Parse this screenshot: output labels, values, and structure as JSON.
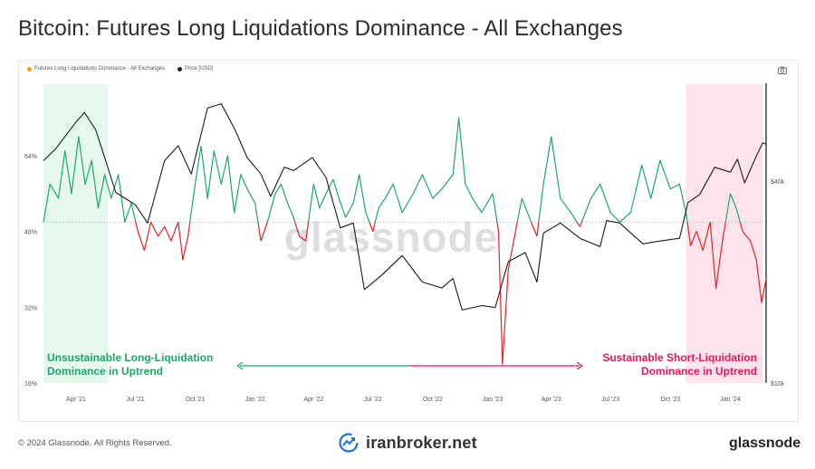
{
  "title": "Bitcoin: Futures Long Liquidations Dominance - All Exchanges",
  "legend": {
    "items": [
      {
        "label": "Futures Long Liquidations Dominance - All Exchanges",
        "color": "#f0a500"
      },
      {
        "label": "Price [USD]",
        "color": "#222222"
      }
    ]
  },
  "colors": {
    "above": "#1aa867",
    "below": "#e02424",
    "price": "#1a1a1a",
    "green_band": "#e6f7ee",
    "pink_band": "#fde4ec",
    "left_annotation": "#1aa867",
    "right_annotation": "#e8185c"
  },
  "watermark": "glassnode",
  "footer": {
    "copyright": "© 2024 Glassnode. All Rights Reserved.",
    "center_brand": "iranbroker.net",
    "right_brand": "glassnode"
  },
  "chart_data": {
    "type": "line",
    "x_ticks": [
      "Apr '21",
      "Jul '21",
      "Oct '21",
      "Jan '22",
      "Apr '22",
      "Jul '22",
      "Oct '22",
      "Jan '23",
      "Apr '23",
      "Jul '23",
      "Oct '23",
      "Jan '24"
    ],
    "x_range": [
      "2021-02-10",
      "2024-02-25"
    ],
    "y_left_ticks": [
      "64%",
      "48%",
      "32%",
      "16%"
    ],
    "y_left_range": [
      16,
      64
    ],
    "y_right_ticks": [
      "$40k",
      "$10k"
    ],
    "threshold": 50,
    "series": [
      {
        "name": "Futures Long Liquidations Dominance - All Exchanges",
        "axis": "left",
        "points": [
          [
            "2021-02-10",
            50
          ],
          [
            "2021-02-20",
            58
          ],
          [
            "2021-03-05",
            55
          ],
          [
            "2021-03-15",
            65
          ],
          [
            "2021-03-25",
            56
          ],
          [
            "2021-04-05",
            68
          ],
          [
            "2021-04-15",
            58
          ],
          [
            "2021-04-25",
            63
          ],
          [
            "2021-05-05",
            53
          ],
          [
            "2021-05-15",
            60
          ],
          [
            "2021-05-25",
            55
          ],
          [
            "2021-06-05",
            60
          ],
          [
            "2021-06-15",
            50
          ],
          [
            "2021-06-25",
            54
          ],
          [
            "2021-07-05",
            48
          ],
          [
            "2021-07-15",
            44
          ],
          [
            "2021-07-25",
            50
          ],
          [
            "2021-08-05",
            47
          ],
          [
            "2021-08-15",
            49
          ],
          [
            "2021-08-25",
            46
          ],
          [
            "2021-09-05",
            50
          ],
          [
            "2021-09-12",
            42
          ],
          [
            "2021-09-20",
            47
          ],
          [
            "2021-10-01",
            58
          ],
          [
            "2021-10-10",
            66
          ],
          [
            "2021-10-20",
            55
          ],
          [
            "2021-10-30",
            65
          ],
          [
            "2021-11-10",
            58
          ],
          [
            "2021-11-20",
            64
          ],
          [
            "2021-11-30",
            52
          ],
          [
            "2021-12-10",
            60
          ],
          [
            "2021-12-20",
            57
          ],
          [
            "2022-01-01",
            54
          ],
          [
            "2022-01-10",
            46
          ],
          [
            "2022-01-20",
            50
          ],
          [
            "2022-02-01",
            56
          ],
          [
            "2022-02-10",
            58
          ],
          [
            "2022-02-20",
            54
          ],
          [
            "2022-03-01",
            51
          ],
          [
            "2022-03-10",
            47
          ],
          [
            "2022-03-20",
            46
          ],
          [
            "2022-04-01",
            58
          ],
          [
            "2022-04-10",
            53
          ],
          [
            "2022-04-20",
            56
          ],
          [
            "2022-05-01",
            59
          ],
          [
            "2022-05-10",
            55
          ],
          [
            "2022-05-20",
            51
          ],
          [
            "2022-06-01",
            54
          ],
          [
            "2022-06-10",
            60
          ],
          [
            "2022-06-20",
            52
          ],
          [
            "2022-07-01",
            48
          ],
          [
            "2022-07-10",
            53
          ],
          [
            "2022-07-20",
            55
          ],
          [
            "2022-08-01",
            58
          ],
          [
            "2022-08-15",
            52
          ],
          [
            "2022-09-01",
            56
          ],
          [
            "2022-09-15",
            60
          ],
          [
            "2022-10-01",
            55
          ],
          [
            "2022-10-15",
            57
          ],
          [
            "2022-11-01",
            60
          ],
          [
            "2022-11-10",
            72
          ],
          [
            "2022-11-20",
            58
          ],
          [
            "2022-12-01",
            55
          ],
          [
            "2022-12-15",
            52
          ],
          [
            "2023-01-01",
            56
          ],
          [
            "2023-01-10",
            48
          ],
          [
            "2023-01-16",
            20
          ],
          [
            "2023-01-25",
            40
          ],
          [
            "2023-02-05",
            48
          ],
          [
            "2023-02-15",
            55
          ],
          [
            "2023-03-01",
            50
          ],
          [
            "2023-03-10",
            47
          ],
          [
            "2023-03-20",
            58
          ],
          [
            "2023-04-01",
            68
          ],
          [
            "2023-04-15",
            55
          ],
          [
            "2023-05-01",
            52
          ],
          [
            "2023-05-15",
            49
          ],
          [
            "2023-06-01",
            55
          ],
          [
            "2023-06-15",
            58
          ],
          [
            "2023-07-01",
            52
          ],
          [
            "2023-07-15",
            50
          ],
          [
            "2023-08-01",
            52
          ],
          [
            "2023-08-18",
            62
          ],
          [
            "2023-09-01",
            55
          ],
          [
            "2023-09-15",
            63
          ],
          [
            "2023-10-01",
            57
          ],
          [
            "2023-10-15",
            58
          ],
          [
            "2023-10-25",
            52
          ],
          [
            "2023-11-01",
            45
          ],
          [
            "2023-11-10",
            48
          ],
          [
            "2023-11-20",
            44
          ],
          [
            "2023-12-01",
            50
          ],
          [
            "2023-12-10",
            36
          ],
          [
            "2023-12-20",
            46
          ],
          [
            "2024-01-01",
            56
          ],
          [
            "2024-01-10",
            53
          ],
          [
            "2024-01-20",
            48
          ],
          [
            "2024-02-01",
            46
          ],
          [
            "2024-02-10",
            42
          ],
          [
            "2024-02-18",
            33
          ],
          [
            "2024-02-25",
            38
          ]
        ]
      },
      {
        "name": "Price [USD]",
        "axis": "right",
        "points": [
          [
            "2021-02-10",
            46000
          ],
          [
            "2021-03-01",
            50000
          ],
          [
            "2021-04-01",
            60000
          ],
          [
            "2021-04-14",
            64000
          ],
          [
            "2021-05-01",
            57000
          ],
          [
            "2021-05-15",
            47000
          ],
          [
            "2021-06-01",
            37000
          ],
          [
            "2021-07-01",
            34000
          ],
          [
            "2021-07-20",
            30000
          ],
          [
            "2021-08-15",
            46000
          ],
          [
            "2021-09-05",
            51000
          ],
          [
            "2021-09-25",
            42000
          ],
          [
            "2021-10-20",
            66000
          ],
          [
            "2021-11-10",
            68000
          ],
          [
            "2021-12-01",
            57000
          ],
          [
            "2021-12-20",
            47000
          ],
          [
            "2022-01-10",
            42000
          ],
          [
            "2022-01-25",
            36000
          ],
          [
            "2022-02-15",
            44000
          ],
          [
            "2022-03-01",
            43000
          ],
          [
            "2022-03-30",
            47000
          ],
          [
            "2022-04-20",
            41000
          ],
          [
            "2022-05-12",
            29000
          ],
          [
            "2022-06-01",
            30000
          ],
          [
            "2022-06-18",
            19000
          ],
          [
            "2022-07-15",
            21000
          ],
          [
            "2022-08-15",
            24000
          ],
          [
            "2022-09-15",
            20000
          ],
          [
            "2022-10-15",
            19200
          ],
          [
            "2022-11-01",
            20500
          ],
          [
            "2022-11-15",
            16500
          ],
          [
            "2022-12-15",
            17000
          ],
          [
            "2023-01-05",
            16800
          ],
          [
            "2023-01-25",
            23000
          ],
          [
            "2023-02-20",
            24500
          ],
          [
            "2023-03-10",
            20000
          ],
          [
            "2023-03-20",
            28000
          ],
          [
            "2023-04-15",
            30000
          ],
          [
            "2023-05-15",
            27000
          ],
          [
            "2023-06-15",
            25500
          ],
          [
            "2023-06-25",
            30500
          ],
          [
            "2023-07-15",
            30000
          ],
          [
            "2023-08-20",
            26000
          ],
          [
            "2023-09-15",
            26500
          ],
          [
            "2023-10-15",
            27000
          ],
          [
            "2023-10-28",
            34500
          ],
          [
            "2023-11-15",
            36500
          ],
          [
            "2023-12-08",
            44000
          ],
          [
            "2024-01-01",
            42500
          ],
          [
            "2024-01-12",
            46500
          ],
          [
            "2024-01-23",
            39500
          ],
          [
            "2024-02-10",
            47500
          ],
          [
            "2024-02-20",
            52000
          ],
          [
            "2024-02-25",
            51500
          ]
        ]
      }
    ],
    "bands": [
      {
        "from": "2021-02-10",
        "to": "2021-05-20",
        "color": "green"
      },
      {
        "from": "2023-10-25",
        "to": "2024-02-20",
        "color": "pink"
      }
    ],
    "annotations": {
      "left": [
        "Unsustainable Long-Liquidation",
        "Dominance in Uptrend"
      ],
      "right": [
        "Sustainable Short-Liquidation",
        "Dominance in Uptrend"
      ]
    }
  }
}
